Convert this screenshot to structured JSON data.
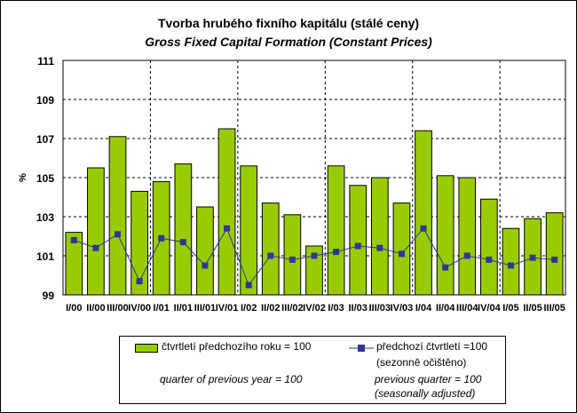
{
  "chart_data": {
    "type": "bar+line",
    "title": "Tvorba hrubého fixního kapitálu (stálé ceny)",
    "subtitle": "Gross Fixed Capital Formation (Constant Prices)",
    "xlabel": "",
    "ylabel": "%",
    "ylim": [
      99,
      111
    ],
    "yticks": [
      99,
      101,
      103,
      105,
      107,
      109,
      111
    ],
    "grid": true,
    "categories": [
      "I/00",
      "II/00",
      "III/00",
      "IV/00",
      "I/01",
      "II/01",
      "III/01",
      "IV/01",
      "I/02",
      "II/02",
      "III/02",
      "IV/02",
      "I/03",
      "II/03",
      "III/03",
      "IV/03",
      "I/04",
      "II/04",
      "III/04",
      "IV/04",
      "I/05",
      "II/05",
      "III/05"
    ],
    "series": [
      {
        "name": "čtvrtletí předchozího roku = 100",
        "name_en": "quarter of previous year = 100",
        "type": "bar",
        "color": "#99CC00",
        "values": [
          102.2,
          105.5,
          107.1,
          104.3,
          104.8,
          105.7,
          103.5,
          107.5,
          105.6,
          103.7,
          103.1,
          101.5,
          105.6,
          104.6,
          105.0,
          103.7,
          107.4,
          105.1,
          105.0,
          103.9,
          102.4,
          102.9,
          103.2
        ]
      },
      {
        "name": "předchozí čtvrtletí =100",
        "name_sub": "(sezonně očištěno)",
        "name_en": "previous quarter = 100",
        "name_en_sub": "(seasonally adjusted)",
        "type": "line",
        "color": "#333399",
        "values": [
          101.8,
          101.4,
          102.1,
          99.7,
          101.9,
          101.7,
          100.5,
          102.4,
          99.5,
          101.0,
          100.8,
          101.0,
          101.2,
          101.5,
          101.4,
          101.1,
          102.4,
          100.4,
          101.0,
          100.8,
          100.5,
          100.9,
          100.8
        ]
      }
    ],
    "legend_position": "bottom"
  }
}
